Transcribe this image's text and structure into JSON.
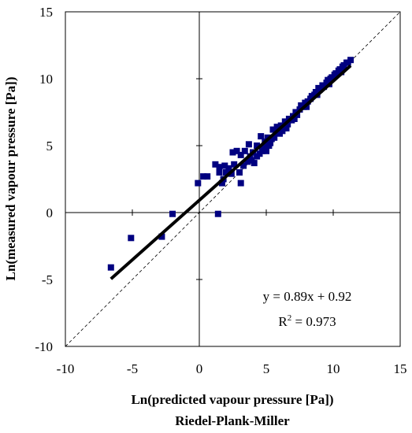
{
  "chart_data": {
    "type": "scatter",
    "xlabel": "Ln(predicted vapour pressure [Pa])",
    "xlabel_line2": "Riedel-Plank-Miller",
    "ylabel": "Ln(measured vapour pressure [Pa])",
    "xlim": [
      -10,
      15
    ],
    "ylim": [
      -10,
      15
    ],
    "x_ticks": [
      "-10",
      "-5",
      "0",
      "5",
      "10",
      "15"
    ],
    "y_ticks": [
      "-10",
      "-5",
      "0",
      "5",
      "10",
      "15"
    ],
    "annotations": {
      "equation": "y = 0.89x + 0.92",
      "r2_prefix": "R",
      "r2_sup": "2",
      "r2_suffix": " = 0.973"
    },
    "marker_color": "#000080",
    "fit_line": {
      "slope": 0.89,
      "intercept": 0.92,
      "x_range": [
        -6.6,
        11.3
      ]
    },
    "identity_line": {
      "x_range": [
        -10,
        15
      ]
    },
    "points": [
      [
        -6.6,
        -4.1
      ],
      [
        -5.1,
        -1.9
      ],
      [
        -2.8,
        -1.8
      ],
      [
        -2.0,
        -0.1
      ],
      [
        1.4,
        -0.1
      ],
      [
        -0.1,
        2.2
      ],
      [
        0.3,
        2.7
      ],
      [
        0.6,
        2.7
      ],
      [
        1.2,
        3.6
      ],
      [
        1.5,
        3.0
      ],
      [
        1.5,
        3.4
      ],
      [
        1.7,
        2.2
      ],
      [
        1.8,
        2.5
      ],
      [
        2.0,
        3.0
      ],
      [
        2.2,
        3.3
      ],
      [
        1.9,
        3.5
      ],
      [
        2.4,
        2.9
      ],
      [
        2.6,
        3.6
      ],
      [
        2.5,
        4.5
      ],
      [
        2.8,
        4.6
      ],
      [
        3.1,
        2.2
      ],
      [
        3.0,
        3.0
      ],
      [
        3.3,
        3.5
      ],
      [
        3.1,
        4.3
      ],
      [
        3.4,
        4.6
      ],
      [
        3.6,
        3.8
      ],
      [
        3.8,
        4.2
      ],
      [
        3.7,
        5.1
      ],
      [
        4.0,
        4.5
      ],
      [
        4.1,
        3.7
      ],
      [
        4.3,
        4.2
      ],
      [
        4.3,
        5.0
      ],
      [
        4.5,
        4.4
      ],
      [
        4.6,
        5.7
      ],
      [
        4.8,
        4.9
      ],
      [
        4.9,
        5.3
      ],
      [
        5.0,
        4.6
      ],
      [
        5.1,
        5.6
      ],
      [
        5.2,
        5.0
      ],
      [
        5.4,
        5.5
      ],
      [
        5.5,
        6.2
      ],
      [
        5.6,
        5.6
      ],
      [
        5.8,
        6.0
      ],
      [
        5.8,
        6.4
      ],
      [
        6.0,
        5.9
      ],
      [
        6.1,
        6.5
      ],
      [
        6.3,
        6.3
      ],
      [
        6.4,
        6.8
      ],
      [
        6.6,
        6.6
      ],
      [
        6.7,
        7.0
      ],
      [
        6.9,
        6.9
      ],
      [
        7.0,
        7.2
      ],
      [
        7.2,
        7.5
      ],
      [
        7.3,
        7.3
      ],
      [
        7.5,
        7.7
      ],
      [
        7.6,
        8.0
      ],
      [
        7.8,
        7.9
      ],
      [
        7.9,
        8.2
      ],
      [
        8.1,
        8.3
      ],
      [
        8.3,
        8.5
      ],
      [
        8.4,
        8.7
      ],
      [
        8.6,
        8.8
      ],
      [
        8.7,
        9.0
      ],
      [
        8.9,
        9.3
      ],
      [
        9.0,
        9.2
      ],
      [
        9.2,
        9.5
      ],
      [
        9.3,
        9.4
      ],
      [
        9.5,
        9.7
      ],
      [
        9.6,
        9.9
      ],
      [
        9.8,
        10.0
      ],
      [
        9.9,
        10.1
      ],
      [
        10.1,
        10.3
      ],
      [
        10.2,
        10.4
      ],
      [
        10.4,
        10.6
      ],
      [
        10.5,
        10.7
      ],
      [
        10.7,
        10.9
      ],
      [
        10.8,
        11.0
      ],
      [
        11.0,
        11.2
      ],
      [
        11.1,
        11.2
      ],
      [
        11.3,
        11.4
      ],
      [
        5.3,
        5.2
      ],
      [
        6.2,
        6.1
      ],
      [
        7.1,
        7.0
      ],
      [
        8.0,
        7.9
      ],
      [
        8.8,
        8.8
      ],
      [
        9.7,
        9.6
      ],
      [
        10.6,
        10.5
      ],
      [
        4.7,
        4.6
      ],
      [
        3.9,
        3.9
      ],
      [
        6.5,
        6.3
      ]
    ]
  }
}
